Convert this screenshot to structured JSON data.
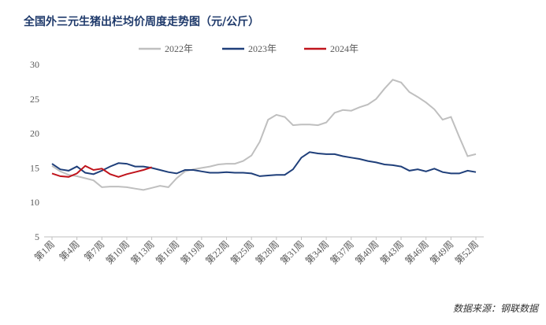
{
  "chart_data": {
    "type": "line",
    "title": "全国外三元生猪出栏均价周度走势图（元/公斤）",
    "source": "数据来源：钢联数据",
    "categories": [
      "第1周",
      null,
      null,
      "第4周",
      null,
      null,
      "第7周",
      null,
      null,
      "第10周",
      null,
      null,
      "第13周",
      null,
      null,
      "第16周",
      null,
      null,
      "第19周",
      null,
      null,
      "第22周",
      null,
      null,
      "第25周",
      null,
      null,
      "第28周",
      null,
      null,
      "第31周",
      null,
      null,
      "第34周",
      null,
      null,
      "第37周",
      null,
      null,
      "第40周",
      null,
      null,
      "第43周",
      null,
      null,
      "第46周",
      null,
      null,
      "第49周",
      null,
      null,
      "第52周"
    ],
    "series": [
      {
        "name": "2022年",
        "color": "#bfbfbf",
        "values": [
          15.3,
          14.5,
          14.0,
          13.8,
          13.5,
          13.2,
          12.2,
          12.3,
          12.3,
          12.2,
          12.0,
          11.8,
          12.1,
          12.4,
          12.2,
          13.5,
          14.5,
          14.8,
          15.0,
          15.2,
          15.5,
          15.6,
          15.6,
          16.0,
          16.8,
          18.8,
          22.0,
          22.7,
          22.4,
          21.2,
          21.3,
          21.3,
          21.2,
          21.6,
          23.0,
          23.4,
          23.3,
          23.8,
          24.2,
          25.0,
          26.5,
          27.8,
          27.4,
          26.0,
          25.3,
          24.5,
          23.5,
          22.0,
          22.4,
          19.5,
          16.7,
          17.0
        ]
      },
      {
        "name": "2023年",
        "color": "#1f3f7a",
        "values": [
          15.6,
          14.8,
          14.6,
          15.2,
          14.3,
          14.1,
          14.6,
          15.2,
          15.7,
          15.6,
          15.2,
          15.2,
          15.0,
          14.7,
          14.4,
          14.2,
          14.7,
          14.7,
          14.5,
          14.3,
          14.3,
          14.4,
          14.3,
          14.3,
          14.2,
          13.8,
          13.9,
          14.0,
          14.0,
          14.8,
          16.5,
          17.3,
          17.1,
          17.0,
          17.0,
          16.7,
          16.5,
          16.3,
          16.0,
          15.8,
          15.5,
          15.4,
          15.2,
          14.6,
          14.8,
          14.5,
          14.9,
          14.4,
          14.2,
          14.2,
          14.6,
          14.4
        ]
      },
      {
        "name": "2024年",
        "color": "#c0141c",
        "values": [
          14.2,
          13.8,
          13.7,
          14.2,
          15.3,
          14.7,
          14.9,
          14.1,
          13.7,
          14.1,
          14.4,
          14.7,
          15.1,
          null,
          null,
          null,
          null,
          null,
          null,
          null,
          null,
          null,
          null,
          null,
          null,
          null,
          null,
          null,
          null,
          null,
          null,
          null,
          null,
          null,
          null,
          null,
          null,
          null,
          null,
          null,
          null,
          null,
          null,
          null,
          null,
          null,
          null,
          null,
          null,
          null,
          null,
          null
        ]
      }
    ],
    "ylim": [
      5,
      30
    ],
    "yticks": [
      5,
      10,
      15,
      20,
      25,
      30
    ],
    "legend": "top"
  }
}
